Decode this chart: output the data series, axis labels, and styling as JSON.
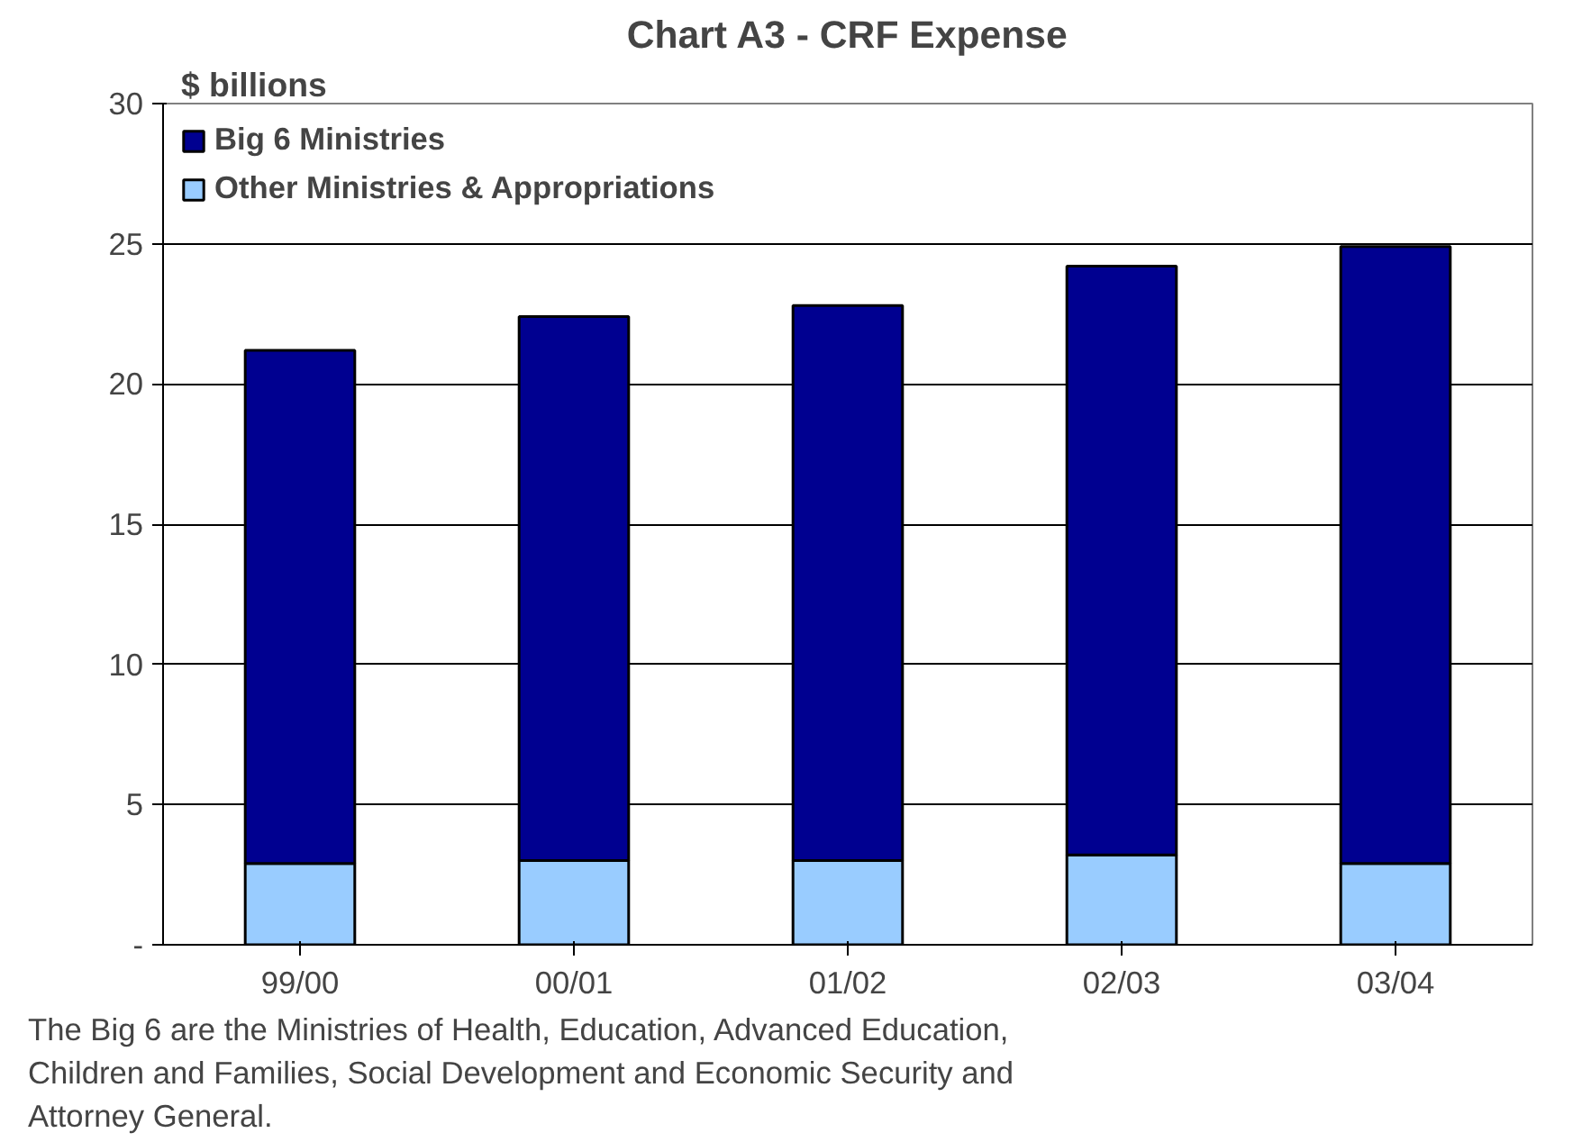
{
  "chart_data": {
    "type": "bar",
    "stacked": true,
    "title": "Chart A3 - CRF Expense",
    "ylabel": "$ billions",
    "categories": [
      "99/00",
      "00/01",
      "01/02",
      "02/03",
      "03/04"
    ],
    "series": [
      {
        "name": "Other Ministries & Appropriations",
        "color": "#99ccff",
        "values": [
          2.9,
          3.0,
          3.0,
          3.2,
          2.9
        ]
      },
      {
        "name": "Big 6 Ministries",
        "color": "#000090",
        "values": [
          18.3,
          19.4,
          19.8,
          21.0,
          22.0
        ]
      }
    ],
    "ylim": [
      0,
      30
    ],
    "yticks": [
      {
        "value": 0,
        "label": "-"
      },
      5,
      10,
      15,
      20,
      25,
      30
    ],
    "grid": "y",
    "legend": "top left",
    "annotations": [
      "The Big 6 are the Ministries of Health, Education, Advanced Education, Children and Families, Social Development and Economic Security and Attorney General."
    ]
  }
}
